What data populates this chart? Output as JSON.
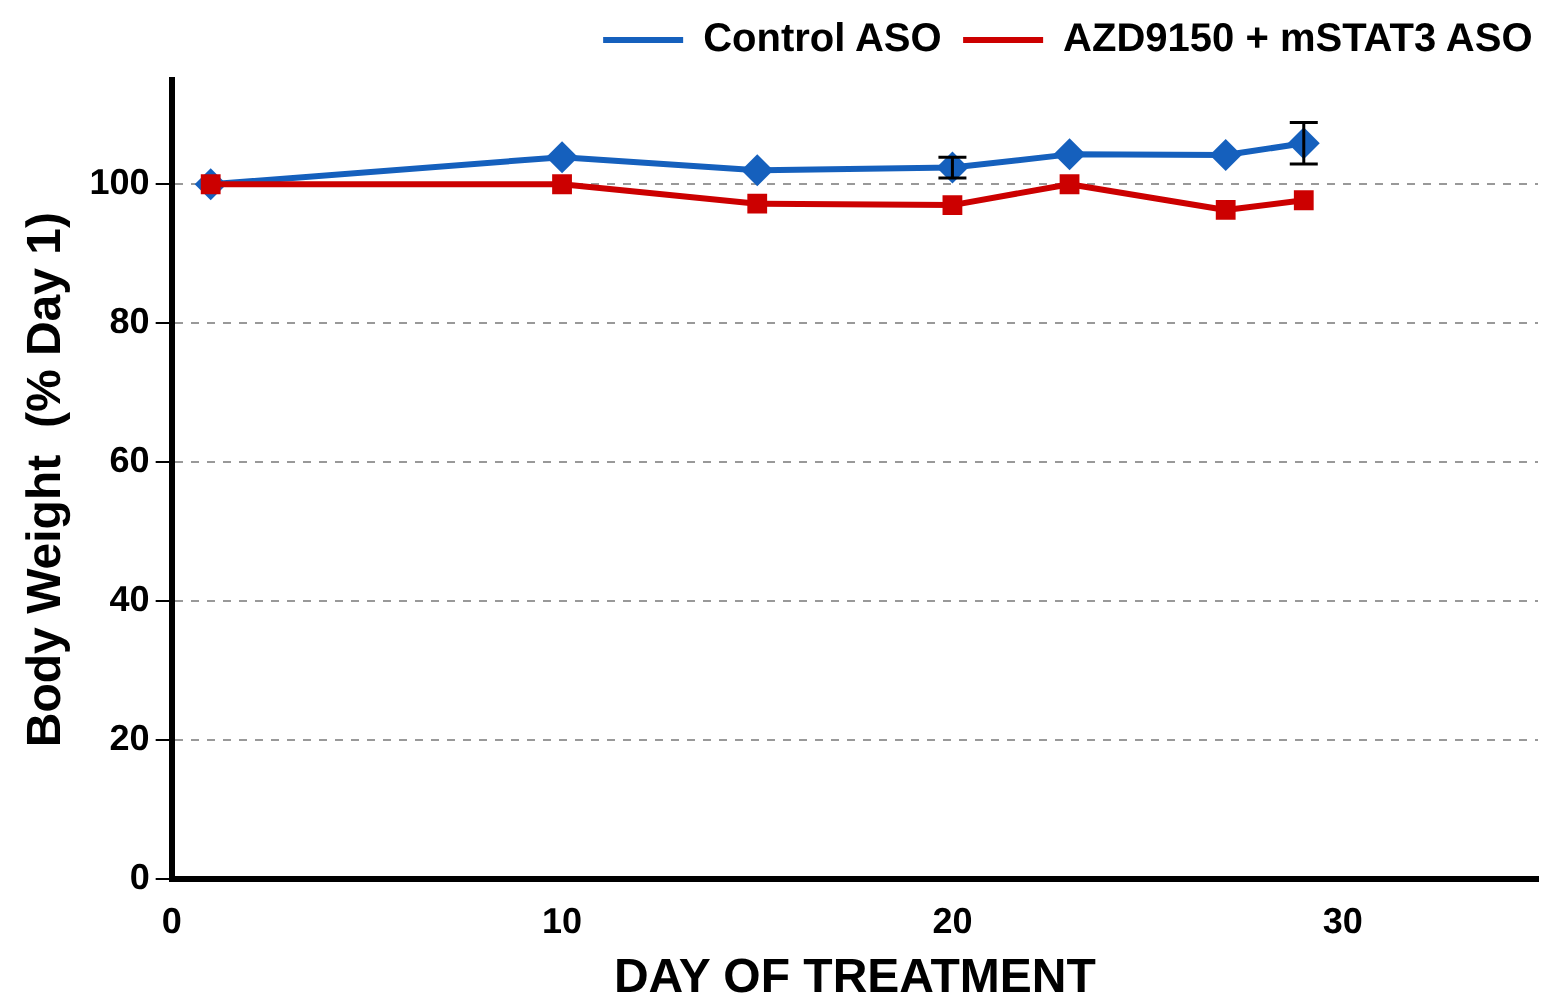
{
  "chart_data": {
    "type": "line",
    "xlabel": "DAY OF TREATMENT",
    "ylabel": "Body Weight  (% Day 1)",
    "xlim": [
      0,
      35
    ],
    "xticks": [
      0,
      10,
      20,
      30
    ],
    "ylim": [
      0,
      115
    ],
    "yticks": [
      0,
      20,
      40,
      60,
      80,
      100
    ],
    "grid": "y",
    "legend": "top",
    "line_style": "solid",
    "series": [
      {
        "name": "Control ASO",
        "color": "#1560bd",
        "marker": "diamond",
        "x": [
          1,
          10,
          15,
          20,
          23,
          27,
          29
        ],
        "values": [
          100,
          103.9,
          102,
          102.4,
          104.3,
          104.2,
          105.9
        ],
        "errors": [
          null,
          null,
          null,
          1.5,
          null,
          null,
          3
        ]
      },
      {
        "name": "AZD9150 + mSTAT3 ASO",
        "color": "#cc0000",
        "marker": "square",
        "x": [
          1,
          10,
          15,
          20,
          23,
          27,
          29
        ],
        "values": [
          100,
          100,
          97.2,
          97,
          100,
          96.3,
          97.7
        ]
      }
    ]
  }
}
